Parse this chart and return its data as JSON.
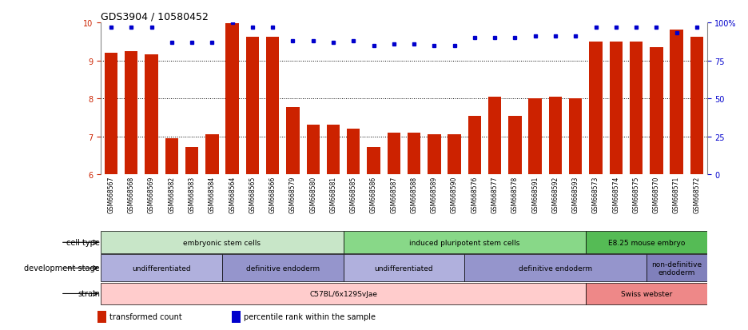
{
  "title": "GDS3904 / 10580452",
  "samples": [
    "GSM668567",
    "GSM668568",
    "GSM668569",
    "GSM668582",
    "GSM668583",
    "GSM668584",
    "GSM668564",
    "GSM668565",
    "GSM668566",
    "GSM668579",
    "GSM668580",
    "GSM668581",
    "GSM668585",
    "GSM668586",
    "GSM668587",
    "GSM668588",
    "GSM668589",
    "GSM668590",
    "GSM668576",
    "GSM668577",
    "GSM668578",
    "GSM668591",
    "GSM668592",
    "GSM668593",
    "GSM668573",
    "GSM668574",
    "GSM668575",
    "GSM668570",
    "GSM668571",
    "GSM668572"
  ],
  "bar_values": [
    9.2,
    9.25,
    9.15,
    6.95,
    6.72,
    7.05,
    9.98,
    9.62,
    9.62,
    7.78,
    7.32,
    7.32,
    7.2,
    6.72,
    7.1,
    7.1,
    7.05,
    7.05,
    7.55,
    8.05,
    7.55,
    8.0,
    8.05,
    8.0,
    9.5,
    9.5,
    9.5,
    9.35,
    9.82,
    9.62
  ],
  "dot_values": [
    97,
    97,
    97,
    87,
    87,
    87,
    100,
    97,
    97,
    88,
    88,
    87,
    88,
    85,
    86,
    86,
    85,
    85,
    90,
    90,
    90,
    91,
    91,
    91,
    97,
    97,
    97,
    97,
    93,
    97
  ],
  "ylim_left": [
    6,
    10
  ],
  "ylim_right": [
    0,
    100
  ],
  "yticks_left": [
    6,
    7,
    8,
    9,
    10
  ],
  "yticks_right": [
    0,
    25,
    50,
    75,
    100
  ],
  "ytick_right_labels": [
    "0",
    "25",
    "50",
    "75",
    "100%"
  ],
  "bar_color": "#cc2200",
  "dot_color": "#0000cc",
  "background_color": "#ffffff",
  "cell_type_groups": [
    {
      "label": "embryonic stem cells",
      "start": 0,
      "end": 11,
      "color": "#c8e6c8"
    },
    {
      "label": "induced pluripotent stem cells",
      "start": 12,
      "end": 23,
      "color": "#88d888"
    },
    {
      "label": "E8.25 mouse embryo",
      "start": 24,
      "end": 29,
      "color": "#55bb55"
    }
  ],
  "dev_stage_groups": [
    {
      "label": "undifferentiated",
      "start": 0,
      "end": 5,
      "color": "#b0b0dd"
    },
    {
      "label": "definitive endoderm",
      "start": 6,
      "end": 11,
      "color": "#9595cc"
    },
    {
      "label": "undifferentiated",
      "start": 12,
      "end": 17,
      "color": "#b0b0dd"
    },
    {
      "label": "definitive endoderm",
      "start": 18,
      "end": 26,
      "color": "#9595cc"
    },
    {
      "label": "non-definitive\nendoderm",
      "start": 27,
      "end": 29,
      "color": "#8080bb"
    }
  ],
  "strain_groups": [
    {
      "label": "C57BL/6x129SvJae",
      "start": 0,
      "end": 23,
      "color": "#ffcccc"
    },
    {
      "label": "Swiss webster",
      "start": 24,
      "end": 29,
      "color": "#ee8888"
    }
  ],
  "legend_items": [
    {
      "color": "#cc2200",
      "label": "transformed count"
    },
    {
      "color": "#0000cc",
      "label": "percentile rank within the sample"
    }
  ]
}
